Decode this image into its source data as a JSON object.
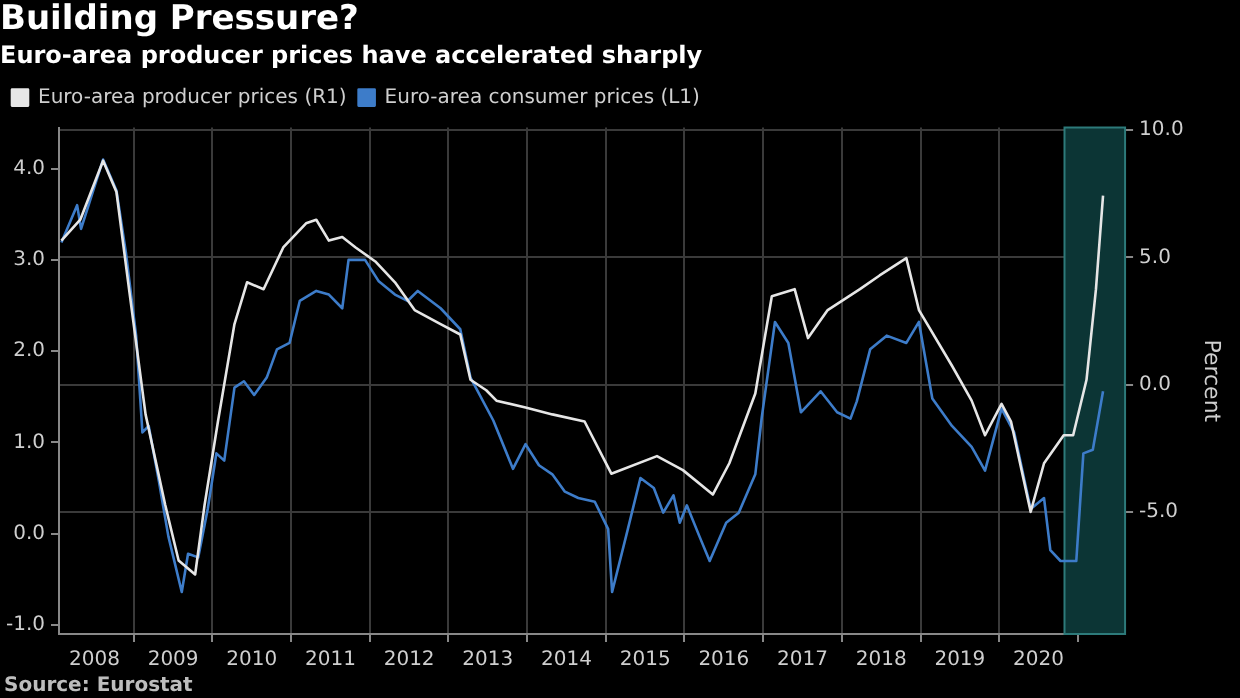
{
  "chart_data": {
    "type": "line",
    "title": "Building Pressure?",
    "subtitle": "Euro-area producer prices have accelerated sharply",
    "y2label": "Percent",
    "legend": "top left",
    "grid": true,
    "marker": "none",
    "line_style": "solid",
    "annotations": [
      "Source: Eurostat"
    ],
    "xlim": [
      2008.05,
      2021.6
    ],
    "xticks": [
      {
        "value": 2008.5,
        "label": "2008"
      },
      {
        "value": 2009,
        "label": null
      },
      {
        "value": 2009.5,
        "label": "2009"
      },
      {
        "value": 2010,
        "label": null
      },
      {
        "value": 2010.5,
        "label": "2010"
      },
      {
        "value": 2011,
        "label": null
      },
      {
        "value": 2011.5,
        "label": "2011"
      },
      {
        "value": 2012,
        "label": null
      },
      {
        "value": 2012.5,
        "label": "2012"
      },
      {
        "value": 2013,
        "label": null
      },
      {
        "value": 2013.5,
        "label": "2013"
      },
      {
        "value": 2014,
        "label": null
      },
      {
        "value": 2014.5,
        "label": "2014"
      },
      {
        "value": 2015,
        "label": null
      },
      {
        "value": 2015.5,
        "label": "2015"
      },
      {
        "value": 2016,
        "label": null
      },
      {
        "value": 2016.5,
        "label": "2016"
      },
      {
        "value": 2017,
        "label": null
      },
      {
        "value": 2017.5,
        "label": "2017"
      },
      {
        "value": 2018,
        "label": null
      },
      {
        "value": 2018.5,
        "label": "2018"
      },
      {
        "value": 2019,
        "label": null
      },
      {
        "value": 2019.5,
        "label": "2019"
      },
      {
        "value": 2020,
        "label": null
      },
      {
        "value": 2020.5,
        "label": "2020"
      },
      {
        "value": 2021,
        "label": null
      }
    ],
    "ylim": [
      -1.1,
      4.45
    ],
    "yticks": [
      {
        "value": -1,
        "label": "-1.0"
      },
      {
        "value": 0,
        "label": "0.0"
      },
      {
        "value": 1,
        "label": "1.0"
      },
      {
        "value": 2,
        "label": "2.0"
      },
      {
        "value": 3,
        "label": "3.0"
      },
      {
        "value": 4,
        "label": "4.0"
      }
    ],
    "y2lim": [
      -9.8,
      10.1
    ],
    "y2ticks": [
      {
        "value": -5,
        "label": "-5.0"
      },
      {
        "value": 0,
        "label": "0.0"
      },
      {
        "value": 5,
        "label": "5.0"
      },
      {
        "value": 10,
        "label": "10.0"
      }
    ],
    "bands": [
      {
        "axis": "x",
        "from": 2020.83,
        "to": 2021.6,
        "color": "#0c3535"
      }
    ],
    "series": [
      {
        "name": "Euro-area producer prices (R1)",
        "color": "#e6e6e6",
        "axis": "y2",
        "x": [
          2008.08,
          2008.32,
          2008.61,
          2008.78,
          2008.94,
          2009.15,
          2009.4,
          2009.57,
          2009.78,
          2009.9,
          2010.07,
          2010.28,
          2010.44,
          2010.65,
          2010.9,
          2011.19,
          2011.32,
          2011.48,
          2011.65,
          2011.82,
          2012.07,
          2012.32,
          2012.57,
          2012.9,
          2013.15,
          2013.28,
          2013.48,
          2013.61,
          2013.98,
          2014.32,
          2014.73,
          2015.07,
          2015.65,
          2015.98,
          2016.36,
          2016.57,
          2016.9,
          2017.11,
          2017.4,
          2017.57,
          2017.82,
          2018.23,
          2018.48,
          2018.82,
          2018.98,
          2019.4,
          2019.65,
          2019.82,
          2020.03,
          2020.15,
          2020.4,
          2020.57,
          2020.82,
          2020.94,
          2021.11,
          2021.23,
          2021.32
        ],
        "values": [
          5.66,
          6.48,
          8.8,
          7.57,
          3.75,
          -1.17,
          -4.73,
          -6.91,
          -7.46,
          -4.73,
          -1.45,
          2.38,
          4.02,
          3.75,
          5.39,
          6.34,
          6.48,
          5.66,
          5.8,
          5.39,
          4.84,
          4.02,
          2.93,
          2.38,
          1.97,
          0.19,
          -0.22,
          -0.63,
          -0.9,
          -1.17,
          -1.45,
          -3.5,
          -2.81,
          -3.36,
          -4.32,
          -3.09,
          -0.35,
          3.47,
          3.75,
          1.83,
          2.93,
          3.75,
          4.29,
          4.97,
          2.93,
          0.74,
          -0.63,
          -1.99,
          -0.76,
          -1.45,
          -5.0,
          -3.09,
          -1.99,
          -1.99,
          0.19,
          3.75,
          7.43
        ]
      },
      {
        "name": "Euro-area consumer prices (L1)",
        "color": "#3d7cc9",
        "x": [
          2008.08,
          2008.28,
          2008.33,
          2008.61,
          2008.78,
          2008.9,
          2009.03,
          2009.11,
          2009.19,
          2009.32,
          2009.44,
          2009.61,
          2009.69,
          2009.82,
          2009.94,
          2010.05,
          2010.15,
          2010.28,
          2010.4,
          2010.53,
          2010.69,
          2010.82,
          2010.98,
          2011.11,
          2011.32,
          2011.48,
          2011.65,
          2011.73,
          2011.94,
          2012.11,
          2012.32,
          2012.48,
          2012.61,
          2012.9,
          2013.15,
          2013.28,
          2013.57,
          2013.82,
          2013.98,
          2014.15,
          2014.32,
          2014.48,
          2014.65,
          2014.86,
          2015.03,
          2015.08,
          2015.28,
          2015.44,
          2015.61,
          2015.73,
          2015.86,
          2015.94,
          2016.03,
          2016.19,
          2016.32,
          2016.53,
          2016.69,
          2016.9,
          2016.98,
          2017.15,
          2017.32,
          2017.48,
          2017.73,
          2017.94,
          2018.11,
          2018.19,
          2018.36,
          2018.57,
          2018.82,
          2018.98,
          2019.15,
          2019.4,
          2019.65,
          2019.82,
          2020.03,
          2020.19,
          2020.4,
          2020.57,
          2020.65,
          2020.78,
          2020.98,
          2021.07,
          2021.19,
          2021.32
        ],
        "values": [
          3.19,
          3.6,
          3.34,
          4.1,
          3.76,
          3.08,
          2.17,
          1.11,
          1.18,
          0.57,
          -0.03,
          -0.64,
          -0.22,
          -0.26,
          0.27,
          0.88,
          0.8,
          1.6,
          1.67,
          1.52,
          1.71,
          2.02,
          2.09,
          2.55,
          2.66,
          2.62,
          2.47,
          3.0,
          3.0,
          2.77,
          2.62,
          2.55,
          2.66,
          2.47,
          2.24,
          1.71,
          1.24,
          0.71,
          0.98,
          0.75,
          0.65,
          0.46,
          0.39,
          0.35,
          0.05,
          -0.64,
          0.05,
          0.61,
          0.5,
          0.23,
          0.42,
          0.12,
          0.31,
          -0.03,
          -0.3,
          0.12,
          0.23,
          0.65,
          1.26,
          2.32,
          2.09,
          1.33,
          1.56,
          1.33,
          1.26,
          1.45,
          2.02,
          2.17,
          2.09,
          2.32,
          1.48,
          1.18,
          0.95,
          0.69,
          1.37,
          1.11,
          0.27,
          0.39,
          -0.18,
          -0.3,
          -0.3,
          0.88,
          0.92,
          1.56
        ]
      }
    ]
  }
}
